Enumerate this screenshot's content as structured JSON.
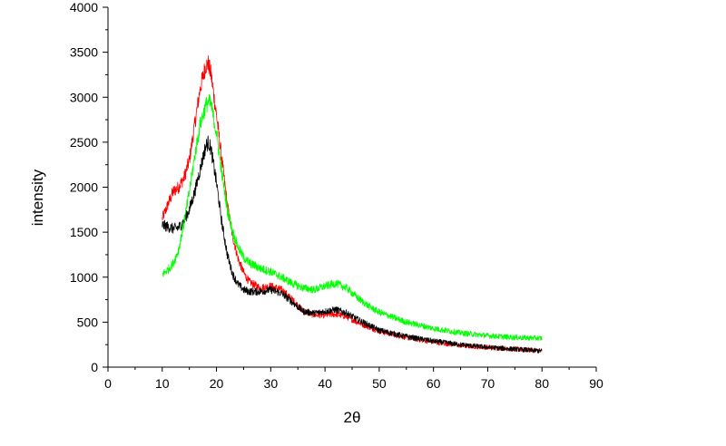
{
  "chart_data": {
    "type": "line",
    "title": "",
    "xlabel": "2θ",
    "ylabel": "intensity",
    "xlim": [
      0,
      90
    ],
    "ylim": [
      0,
      4000
    ],
    "xticks": [
      0,
      10,
      20,
      30,
      40,
      50,
      60,
      70,
      80,
      90
    ],
    "yticks": [
      0,
      500,
      1000,
      1500,
      2000,
      2500,
      3000,
      3500,
      4000
    ],
    "grid": false,
    "legend": "none",
    "series": [
      {
        "color": "#ff0000",
        "x": [
          10,
          11,
          12,
          13,
          14,
          15,
          16,
          17,
          18,
          18.5,
          19,
          20,
          21,
          22,
          23,
          24,
          25,
          26,
          28,
          30,
          32,
          34,
          36,
          38,
          40,
          42,
          44,
          46,
          48,
          50,
          55,
          60,
          65,
          70,
          75,
          80
        ],
        "y": [
          1650,
          1800,
          1950,
          2000,
          2100,
          2300,
          2700,
          3100,
          3350,
          3370,
          3250,
          2800,
          2300,
          1800,
          1450,
          1200,
          1050,
          950,
          880,
          900,
          860,
          750,
          620,
          580,
          580,
          590,
          560,
          500,
          450,
          400,
          330,
          280,
          240,
          220,
          200,
          180
        ]
      },
      {
        "color": "#000000",
        "x": [
          10,
          11,
          12,
          13,
          14,
          15,
          16,
          17,
          18,
          18.5,
          19,
          20,
          21,
          22,
          23,
          24,
          25,
          26,
          28,
          30,
          32,
          34,
          36,
          38,
          40,
          42,
          44,
          46,
          48,
          50,
          55,
          60,
          65,
          70,
          75,
          80
        ],
        "y": [
          1580,
          1560,
          1540,
          1550,
          1620,
          1750,
          1950,
          2200,
          2450,
          2500,
          2420,
          2050,
          1600,
          1250,
          1030,
          920,
          860,
          840,
          840,
          860,
          820,
          720,
          620,
          600,
          620,
          640,
          600,
          530,
          470,
          410,
          340,
          290,
          250,
          220,
          200,
          180
        ]
      },
      {
        "color": "#00ff00",
        "x": [
          10,
          11,
          12,
          13,
          14,
          15,
          16,
          17,
          18,
          18.5,
          19,
          20,
          21,
          22,
          23,
          24,
          25,
          26,
          28,
          30,
          32,
          34,
          36,
          38,
          40,
          42,
          44,
          46,
          48,
          50,
          55,
          60,
          65,
          70,
          75,
          80
        ],
        "y": [
          1030,
          1080,
          1150,
          1300,
          1600,
          1950,
          2350,
          2700,
          2900,
          2950,
          2920,
          2600,
          2150,
          1750,
          1500,
          1330,
          1220,
          1160,
          1100,
          1060,
          1000,
          930,
          880,
          860,
          900,
          930,
          880,
          770,
          680,
          610,
          500,
          430,
          380,
          350,
          330,
          320
        ]
      }
    ]
  }
}
